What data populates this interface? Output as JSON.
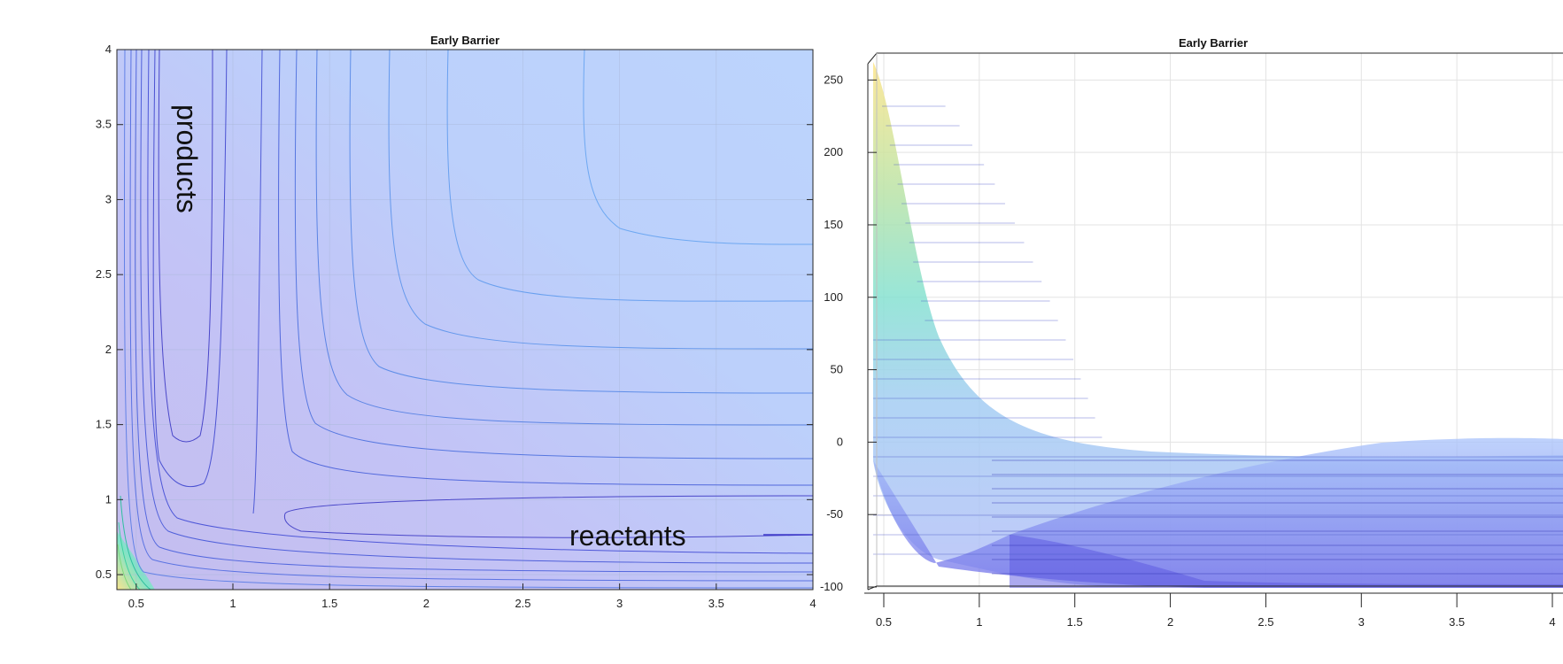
{
  "chart_data": [
    {
      "type": "contour",
      "title": "Early Barrier",
      "xlabel": "",
      "ylabel": "",
      "xlim": [
        0.4,
        4
      ],
      "ylim": [
        0.4,
        4
      ],
      "x_ticks": [
        0.5,
        1,
        1.5,
        2,
        2.5,
        3,
        3.5,
        4
      ],
      "y_ticks": [
        0.5,
        1,
        1.5,
        2,
        2.5,
        3,
        3.5,
        4
      ],
      "grid": true,
      "colormap": "parula",
      "annotations": [
        {
          "text": "products",
          "x": 0.78,
          "y": 3.15,
          "rotation": 90
        },
        {
          "text": "reactants",
          "x": 3.05,
          "y": 0.72,
          "rotation": 0
        }
      ]
    },
    {
      "type": "surface",
      "title": "Early Barrier",
      "xlabel": "",
      "ylabel": "",
      "xlim": [
        0.4,
        4
      ],
      "zlim": [
        -100,
        260
      ],
      "x_ticks": [
        0.5,
        1,
        1.5,
        2,
        2.5,
        3,
        3.5,
        4
      ],
      "z_ticks": [
        -100,
        -50,
        0,
        50,
        100,
        150,
        200,
        250
      ],
      "grid": true,
      "colormap": "parula"
    }
  ],
  "colors": {
    "background": "#ffffff",
    "low": "#3b2bd6",
    "mid_blue": "#6e8ff5",
    "light_blue": "#b9d3fd",
    "teal": "#2ec4b6",
    "yellow": "#fde725",
    "axis": "#262626",
    "grid": "#d9d9d9"
  }
}
